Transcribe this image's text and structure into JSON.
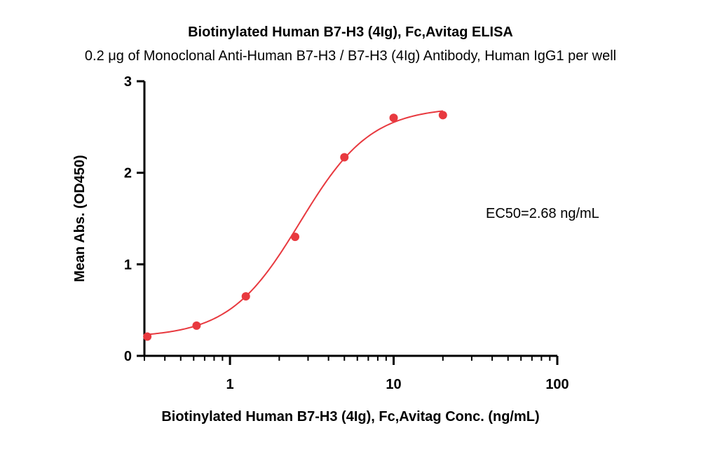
{
  "chart_data": {
    "type": "scatter",
    "title": "Biotinylated Human B7-H3 (4Ig), Fc,Avitag ELISA",
    "subtitle": "0.2 μg of Monoclonal Anti-Human B7-H3 / B7-H3 (4Ig) Antibody, Human IgG1 per well",
    "xlabel": "Biotinylated Human B7-H3 (4Ig), Fc,Avitag Conc. (ng/mL)",
    "ylabel": "Mean Abs. (OD450)",
    "x_scale": "log",
    "xlim": [
      0.3,
      100
    ],
    "ylim": [
      0,
      3
    ],
    "x_ticks": [
      1,
      10,
      100
    ],
    "x_tick_labels": [
      "1",
      "10",
      "100"
    ],
    "y_ticks": [
      0,
      1,
      2,
      3
    ],
    "y_tick_labels": [
      "0",
      "1",
      "2",
      "3"
    ],
    "series": [
      {
        "x": [
          0.3125,
          0.625,
          1.25,
          2.5,
          5,
          10,
          20
        ],
        "y": [
          0.21,
          0.33,
          0.65,
          1.3,
          2.17,
          2.6,
          2.63
        ],
        "color": "#e8393f",
        "fit": "4PL",
        "fit_params": {
          "bottom": 0.2,
          "top": 2.72,
          "ec50": 2.68,
          "hill": 2.0
        }
      }
    ],
    "annotations": [
      {
        "text": "EC50=2.68 ng/mL"
      }
    ],
    "grid": false,
    "legend": "none"
  }
}
